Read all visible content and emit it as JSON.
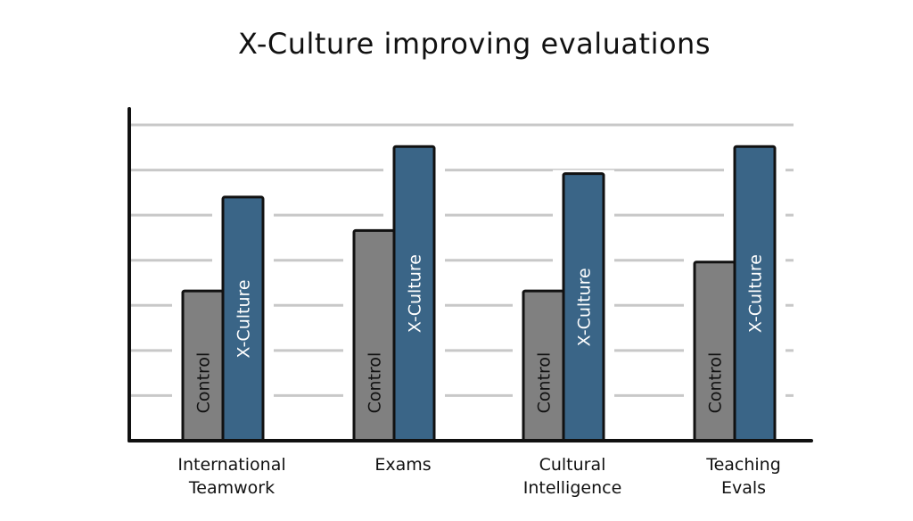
{
  "chart_data": {
    "type": "bar",
    "title": "X-Culture improving evaluations",
    "xlabel": "",
    "ylabel": "",
    "categories": [
      [
        "International",
        "Teamwork"
      ],
      [
        "Exams"
      ],
      [
        "Cultural",
        "Intelligence"
      ],
      [
        "Teaching",
        "Evals"
      ]
    ],
    "series": [
      {
        "name": "Control",
        "values": [
          1.66,
          2.33,
          1.66,
          1.98
        ],
        "color": "#808080"
      },
      {
        "name": "X-Culture",
        "values": [
          2.7,
          3.26,
          2.96,
          3.26
        ],
        "color": "#3a6587"
      }
    ],
    "ylim": [
      0,
      3.5
    ],
    "grid": true,
    "gridlines": [
      0.5,
      1.0,
      1.5,
      2.0,
      2.5,
      3.0,
      3.5
    ],
    "show_y_ticks": false,
    "colors": {
      "grid": "#c8c8c8",
      "axis": "#111111",
      "text": "#111111"
    }
  }
}
